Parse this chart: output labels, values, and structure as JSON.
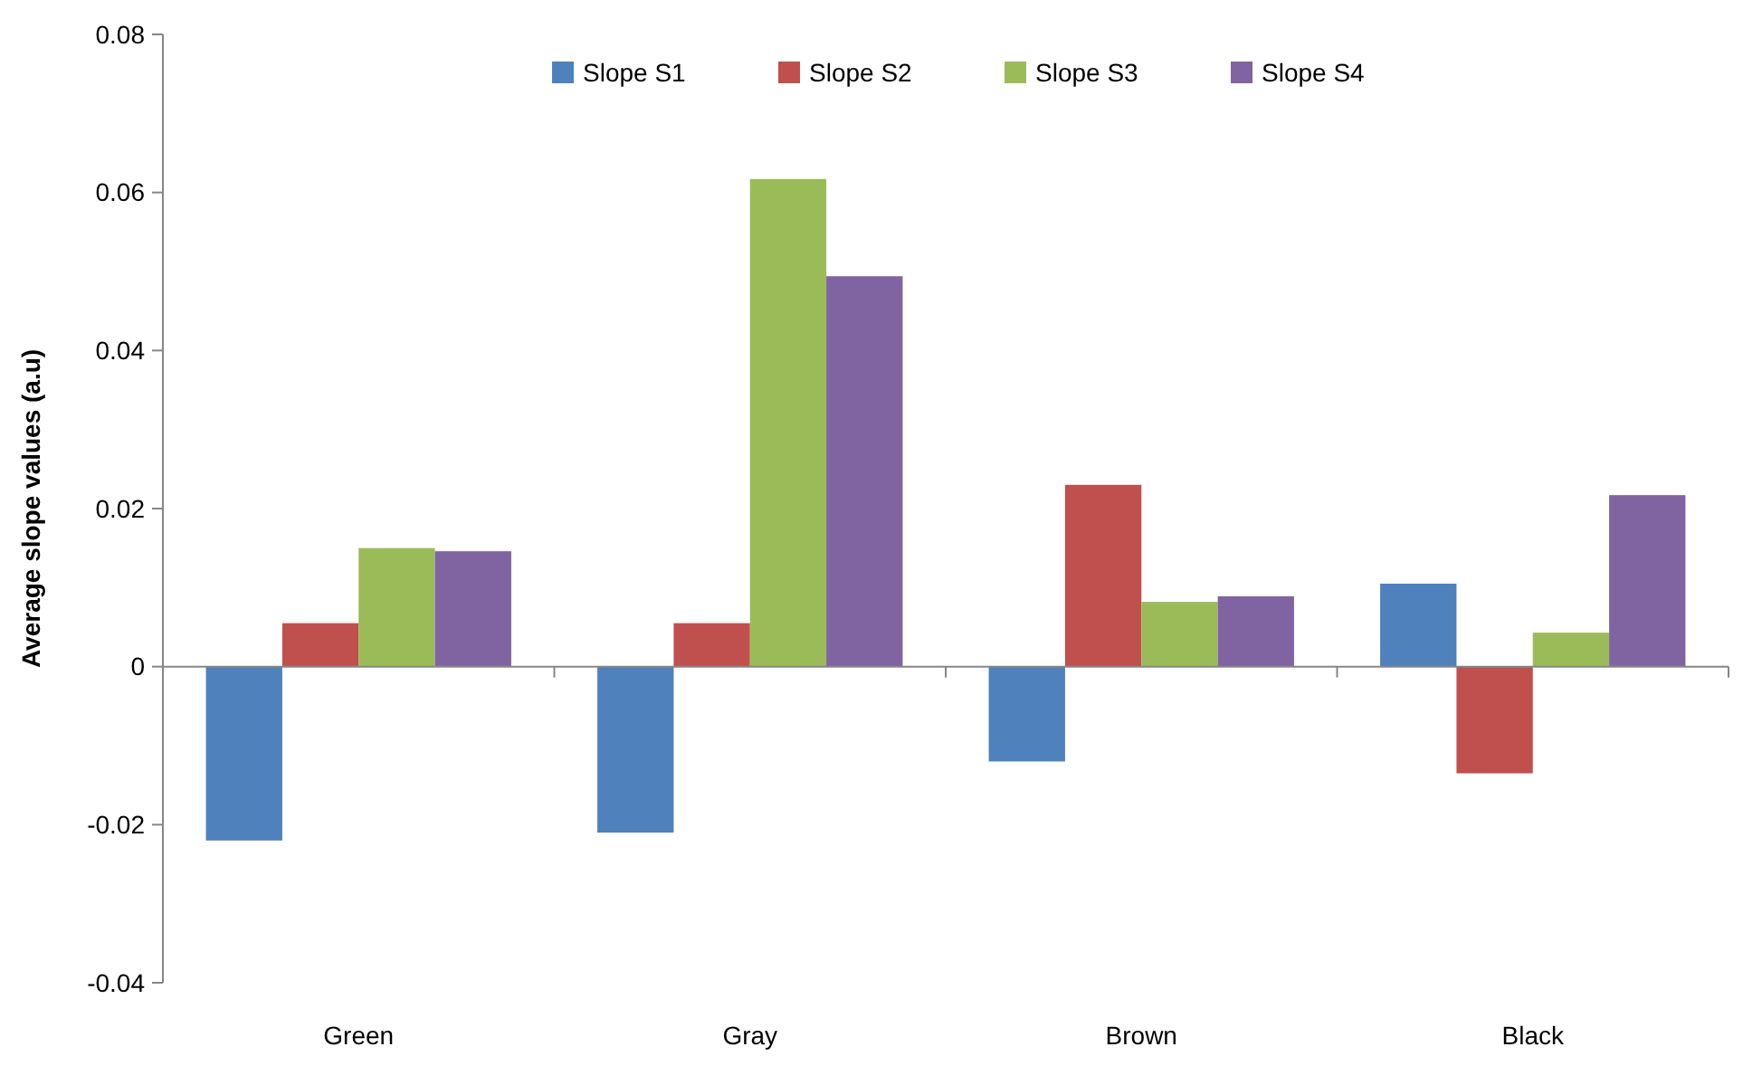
{
  "chart_data": {
    "type": "bar",
    "ylabel": "Average slope values (a.u)",
    "categories": [
      "Green",
      "Gray",
      "Brown",
      "Black"
    ],
    "series": [
      {
        "name": "Slope S1",
        "color": "#4f81bd",
        "values": [
          -0.022,
          -0.021,
          -0.012,
          0.0105
        ]
      },
      {
        "name": "Slope S2",
        "color": "#c0504d",
        "values": [
          0.0055,
          0.0055,
          0.023,
          -0.0135
        ]
      },
      {
        "name": "Slope S3",
        "color": "#9bbb59",
        "values": [
          0.015,
          0.0617,
          0.0082,
          0.0043
        ]
      },
      {
        "name": "Slope S4",
        "color": "#8064a2",
        "values": [
          0.0146,
          0.0494,
          0.0089,
          0.0217
        ]
      }
    ],
    "ylim": [
      -0.04,
      0.08
    ],
    "yticks": [
      -0.04,
      -0.02,
      0,
      0.02,
      0.04,
      0.06,
      0.08
    ],
    "legend": "top"
  }
}
